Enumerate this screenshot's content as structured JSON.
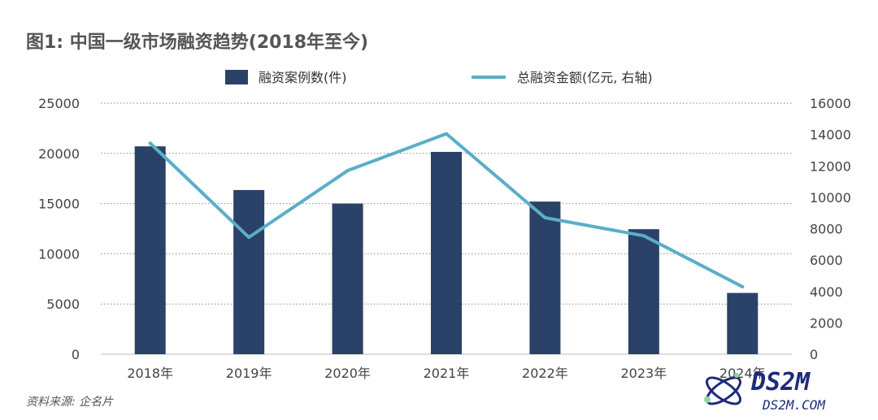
{
  "title": "图1: 中国一级市场融资趋势(2018年至今)",
  "source": "资料来源: 企名片",
  "watermark": {
    "brand": "DS2M",
    "site": "DS2M.COM"
  },
  "colors": {
    "bar": "#2a4168",
    "line": "#5aaec8",
    "grid": "#8a8a8a",
    "text": "#444444"
  },
  "chart_data": {
    "type": "bar+line",
    "categories": [
      "2018年",
      "2019年",
      "2020年",
      "2021年",
      "2022年",
      "2023年",
      "2024年"
    ],
    "series": [
      {
        "name": "融资案例数(件)",
        "type": "bar",
        "axis": "left",
        "values": [
          20700,
          16350,
          15000,
          20150,
          15200,
          12450,
          6100
        ]
      },
      {
        "name": "总融资金额(亿元, 右轴)",
        "type": "line",
        "axis": "right",
        "values": [
          13450,
          7450,
          11700,
          14050,
          8700,
          7550,
          4300
        ]
      }
    ],
    "y_left": {
      "lim": [
        0,
        25000
      ],
      "ticks": [
        "0",
        "5000",
        "10000",
        "15000",
        "20000",
        "25000"
      ]
    },
    "y_right": {
      "lim": [
        0,
        16000
      ],
      "ticks": [
        "0",
        "2000",
        "4000",
        "6000",
        "8000",
        "10000",
        "12000",
        "14000",
        "16000"
      ]
    },
    "grid": true,
    "legend_position": "top"
  }
}
